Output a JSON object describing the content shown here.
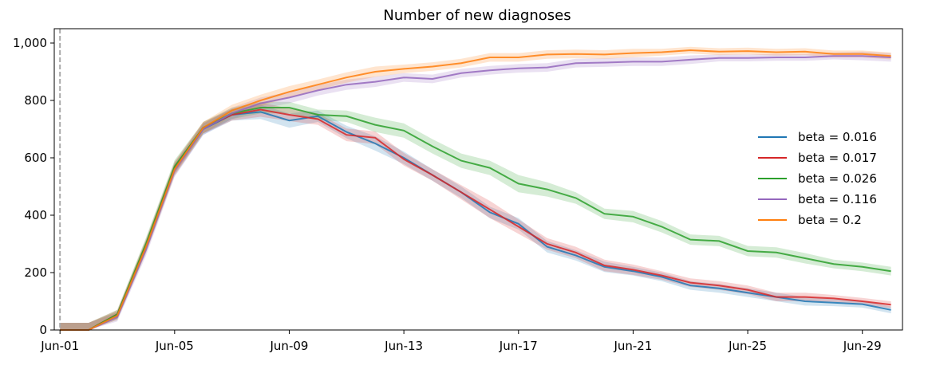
{
  "chart_data": {
    "type": "line",
    "title": "Number of new diagnoses",
    "xlabel": "",
    "ylabel": "",
    "x_start_date": "2024-06-01",
    "x": [
      "Jun-01",
      "Jun-02",
      "Jun-03",
      "Jun-04",
      "Jun-05",
      "Jun-06",
      "Jun-07",
      "Jun-08",
      "Jun-09",
      "Jun-10",
      "Jun-11",
      "Jun-12",
      "Jun-13",
      "Jun-14",
      "Jun-15",
      "Jun-16",
      "Jun-17",
      "Jun-18",
      "Jun-19",
      "Jun-20",
      "Jun-21",
      "Jun-22",
      "Jun-23",
      "Jun-24",
      "Jun-25",
      "Jun-26",
      "Jun-27",
      "Jun-28",
      "Jun-29",
      "Jun-30"
    ],
    "xlim": [
      "May-31 (approx.)",
      "Jun-30 (approx.)"
    ],
    "ylim": [
      0,
      1050
    ],
    "x_ticks": [
      "Jun-01",
      "Jun-05",
      "Jun-09",
      "Jun-13",
      "Jun-17",
      "Jun-21",
      "Jun-25",
      "Jun-29"
    ],
    "y_ticks": [
      "0",
      "200",
      "400",
      "600",
      "800",
      "1,000"
    ],
    "y_tick_values": [
      0,
      200,
      400,
      600,
      800,
      1000
    ],
    "vline": "Jun-01",
    "legend_position": "center-right",
    "series": [
      {
        "name": "beta = 0.016",
        "color": "#1f77b4",
        "values": [
          0,
          0,
          50,
          290,
          560,
          700,
          750,
          760,
          730,
          745,
          690,
          650,
          600,
          540,
          480,
          410,
          370,
          290,
          260,
          220,
          205,
          185,
          155,
          145,
          130,
          115,
          100,
          95,
          90,
          70
        ],
        "band": [
          25,
          25,
          15,
          22,
          22,
          20,
          20,
          25,
          25,
          20,
          22,
          25,
          22,
          20,
          20,
          20,
          20,
          20,
          18,
          18,
          15,
          15,
          15,
          15,
          15,
          15,
          15,
          12,
          12,
          12
        ]
      },
      {
        "name": "beta = 0.017",
        "color": "#d62728",
        "values": [
          0,
          0,
          55,
          295,
          565,
          705,
          750,
          768,
          750,
          735,
          680,
          670,
          595,
          540,
          480,
          420,
          360,
          300,
          270,
          225,
          210,
          190,
          165,
          155,
          140,
          115,
          115,
          110,
          100,
          88
        ],
        "band": [
          25,
          25,
          15,
          22,
          22,
          20,
          20,
          25,
          22,
          20,
          22,
          22,
          22,
          20,
          25,
          30,
          25,
          20,
          20,
          20,
          18,
          15,
          15,
          15,
          15,
          15,
          15,
          12,
          12,
          12
        ]
      },
      {
        "name": "beta = 0.026",
        "color": "#2ca02c",
        "values": [
          0,
          0,
          55,
          300,
          570,
          705,
          755,
          775,
          775,
          750,
          745,
          715,
          695,
          640,
          590,
          565,
          510,
          490,
          460,
          405,
          395,
          360,
          315,
          310,
          275,
          270,
          250,
          230,
          220,
          205
        ],
        "band": [
          25,
          25,
          15,
          22,
          22,
          20,
          20,
          20,
          20,
          18,
          20,
          25,
          25,
          25,
          25,
          25,
          30,
          25,
          20,
          18,
          20,
          20,
          18,
          18,
          18,
          18,
          18,
          15,
          15,
          15
        ]
      },
      {
        "name": "beta = 0.116",
        "color": "#9467bd",
        "values": [
          0,
          0,
          45,
          280,
          555,
          700,
          755,
          790,
          810,
          835,
          855,
          865,
          880,
          875,
          895,
          905,
          912,
          915,
          930,
          932,
          935,
          935,
          942,
          948,
          948,
          950,
          950,
          955,
          955,
          950
        ],
        "band": [
          25,
          25,
          15,
          22,
          22,
          20,
          20,
          20,
          20,
          18,
          18,
          18,
          15,
          15,
          15,
          15,
          15,
          15,
          15,
          15,
          15,
          15,
          15,
          12,
          12,
          12,
          12,
          12,
          15,
          15
        ]
      },
      {
        "name": "beta = 0.2",
        "color": "#ff7f0e",
        "values": [
          0,
          0,
          50,
          290,
          560,
          705,
          765,
          800,
          830,
          855,
          880,
          900,
          910,
          918,
          930,
          950,
          950,
          960,
          962,
          960,
          965,
          968,
          975,
          970,
          972,
          968,
          970,
          962,
          962,
          955
        ],
        "band": [
          25,
          25,
          15,
          22,
          22,
          20,
          20,
          20,
          20,
          18,
          18,
          18,
          15,
          15,
          15,
          15,
          15,
          15,
          15,
          15,
          15,
          12,
          12,
          12,
          12,
          12,
          12,
          12,
          12,
          12
        ]
      }
    ]
  }
}
